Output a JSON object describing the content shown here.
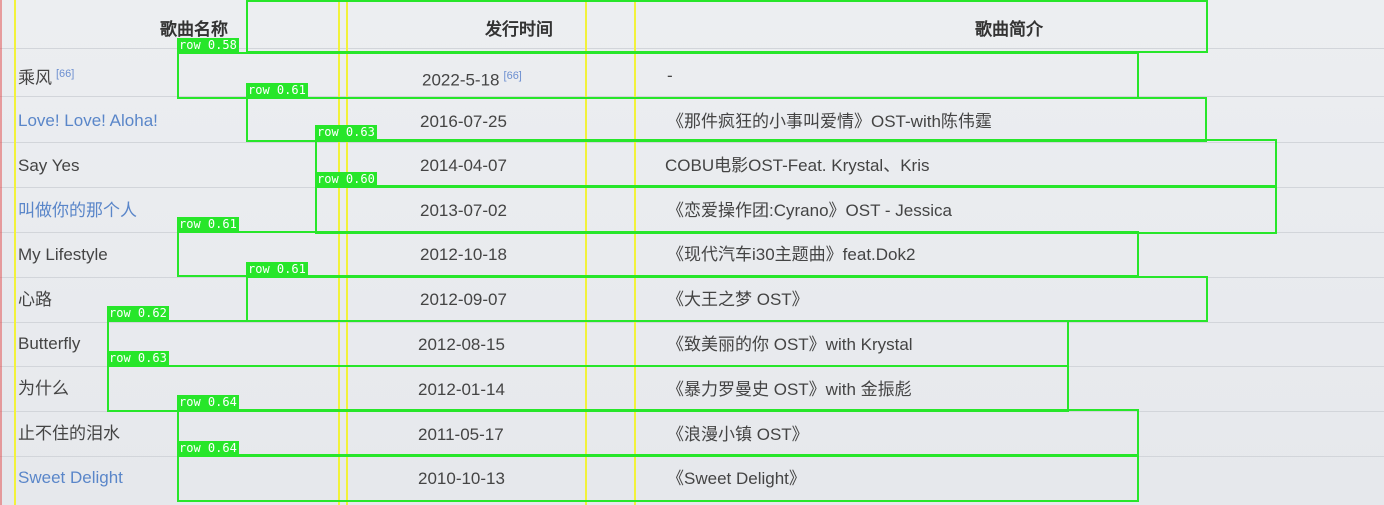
{
  "table": {
    "headers": {
      "name": "歌曲名称",
      "date": "发行时间",
      "intro": "歌曲简介"
    },
    "rows": [
      {
        "name": "乘风",
        "name_ref": "[66]",
        "name_link": false,
        "date": "2022-5-18",
        "date_ref": "[66]",
        "intro": "-"
      },
      {
        "name": "Love! Love! Aloha!",
        "name_ref": "",
        "name_link": true,
        "date": "2016-07-25",
        "date_ref": "",
        "intro": "《那件疯狂的小事叫爱情》OST-with陈伟霆"
      },
      {
        "name": "Say Yes",
        "name_ref": "",
        "name_link": false,
        "date": "2014-04-07",
        "date_ref": "",
        "intro": "COBU电影OST-Feat. Krystal、Kris"
      },
      {
        "name": "叫做你的那个人",
        "name_ref": "",
        "name_link": true,
        "date": "2013-07-02",
        "date_ref": "",
        "intro": "《恋爱操作团:Cyrano》OST - Jessica"
      },
      {
        "name": "My Lifestyle",
        "name_ref": "",
        "name_link": false,
        "date": "2012-10-18",
        "date_ref": "",
        "intro": "《现代汽车i30主题曲》feat.Dok2"
      },
      {
        "name": "心路",
        "name_ref": "",
        "name_link": false,
        "date": "2012-09-07",
        "date_ref": "",
        "intro": "《大王之梦 OST》"
      },
      {
        "name": "Butterfly",
        "name_ref": "",
        "name_link": false,
        "date": "2012-08-15",
        "date_ref": "",
        "intro": "《致美丽的你 OST》with Krystal"
      },
      {
        "name": "为什么",
        "name_ref": "",
        "name_link": false,
        "date": "2012-01-14",
        "date_ref": "",
        "intro": "《暴力罗曼史 OST》with 金振彪"
      },
      {
        "name": "止不住的泪水",
        "name_ref": "",
        "name_link": false,
        "date": "2011-05-17",
        "date_ref": "",
        "intro": "《浪漫小镇 OST》"
      },
      {
        "name": "Sweet Delight",
        "name_ref": "",
        "name_link": true,
        "date": "2010-10-13",
        "date_ref": "",
        "intro": "《Sweet Delight》"
      }
    ]
  },
  "detections": [
    {
      "label": "row 0.58"
    },
    {
      "label": "row 0.61"
    },
    {
      "label": "row 0.63"
    },
    {
      "label": "row 0.60"
    },
    {
      "label": "row 0.61"
    },
    {
      "label": "row 0.61"
    },
    {
      "label": "row 0.62"
    },
    {
      "label": "row 0.63"
    },
    {
      "label": "row 0.64"
    },
    {
      "label": "row 0.64"
    }
  ],
  "colors": {
    "box": "#27e62a",
    "column_line": "#f2f23a",
    "link": "#5a86c9"
  }
}
